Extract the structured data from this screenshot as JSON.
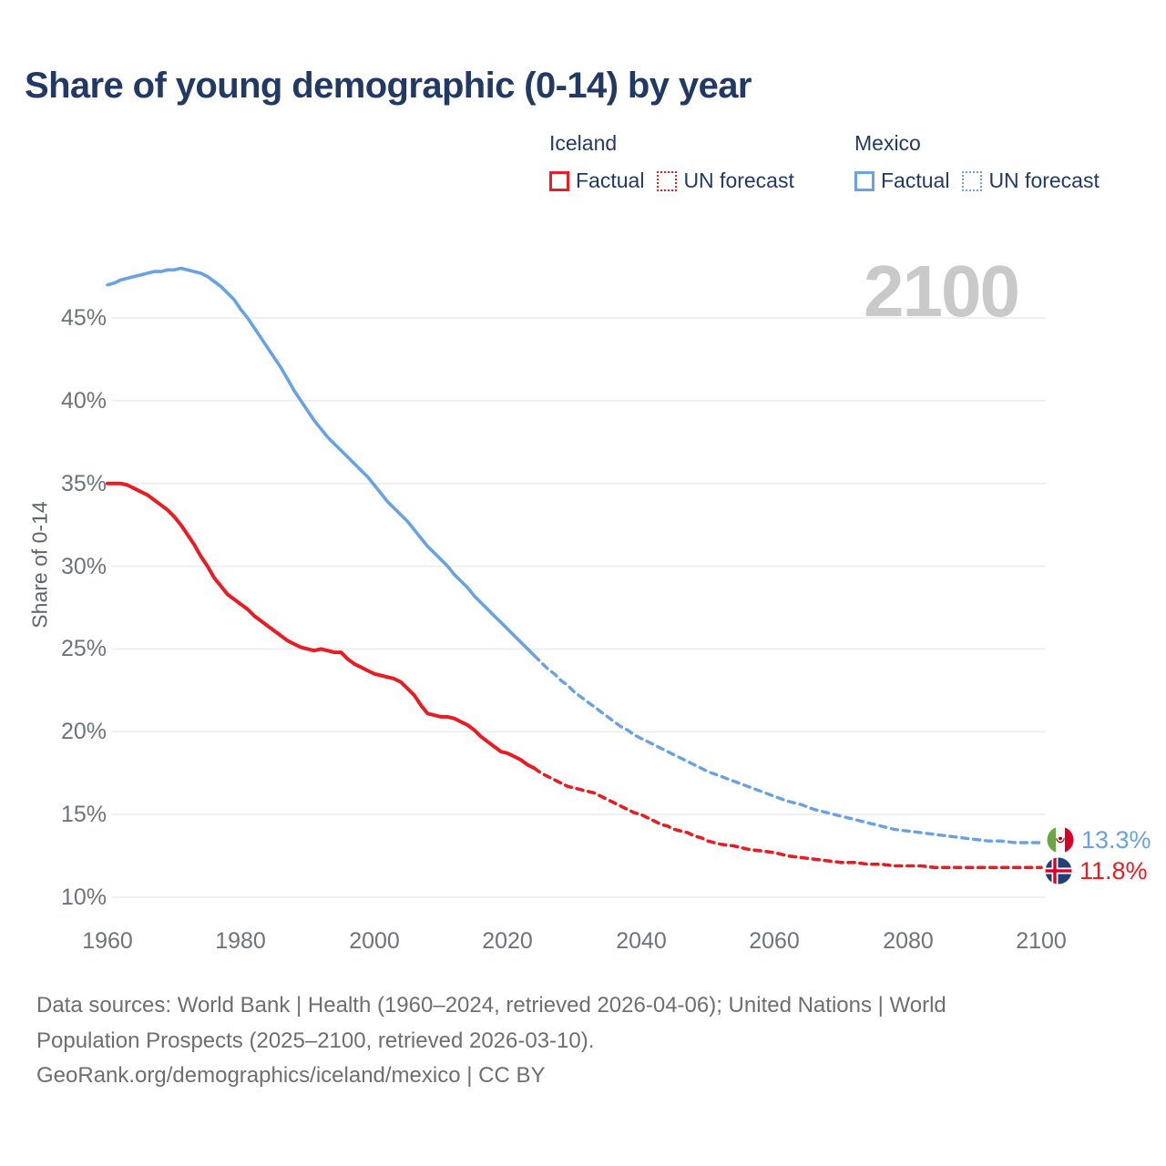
{
  "title": "Share of young demographic (0-14) by year",
  "watermark": "2100",
  "legend": {
    "iceland": {
      "label": "Iceland",
      "factual_label": "Factual",
      "forecast_label": "UN forecast"
    },
    "mexico": {
      "label": "Mexico",
      "factual_label": "Factual",
      "forecast_label": "UN forecast"
    }
  },
  "end_labels": {
    "mexico": {
      "value": "13.3%",
      "flag": "mexico-flag"
    },
    "iceland": {
      "value": "11.8%",
      "flag": "iceland-flag"
    }
  },
  "footer": {
    "lines": [
      "Data sources: World Bank | Health (1960–2024, retrieved 2026-04-06); United Nations | World",
      "Population Prospects (2025–2100, retrieved 2026-03-10).",
      "GeoRank.org/demographics/iceland/mexico | CC BY"
    ]
  },
  "colors": {
    "iceland": "#e81d23",
    "mexico": "#68a2e2",
    "title": "#223a63",
    "axis_text": "#6d737d",
    "grid": "#ebebed",
    "watermark": "#c9c9c9",
    "footer_text": "#6e6e6e"
  },
  "chart_data": {
    "type": "line",
    "title": "Share of young demographic (0-14) by year",
    "xlabel": "",
    "ylabel": "Share of 0-14",
    "xlim": [
      1960,
      2100
    ],
    "ylim": [
      10,
      48
    ],
    "grid": "horizontal",
    "legend_position": "top-right",
    "x_ticks": [
      1960,
      1980,
      2000,
      2020,
      2040,
      2060,
      2080,
      2100
    ],
    "x_tick_labels": [
      "1960",
      "1980",
      "2000",
      "2020",
      "2040",
      "2060",
      "2080",
      "2100"
    ],
    "y_ticks": [
      10,
      15,
      20,
      25,
      30,
      35,
      40,
      45
    ],
    "y_tick_labels": [
      "10%",
      "15%",
      "20%",
      "25%",
      "30%",
      "35%",
      "40%",
      "45%"
    ],
    "series": [
      {
        "id": "mexico-factual",
        "name": "Mexico Factual",
        "country": "Mexico",
        "kind": "factual",
        "color": "mexico",
        "dash": null,
        "width": 3.6,
        "points": [
          [
            1960,
            47.0
          ],
          [
            1961,
            47.1
          ],
          [
            1962,
            47.3
          ],
          [
            1963,
            47.4
          ],
          [
            1964,
            47.5
          ],
          [
            1965,
            47.6
          ],
          [
            1966,
            47.7
          ],
          [
            1967,
            47.8
          ],
          [
            1968,
            47.8
          ],
          [
            1969,
            47.9
          ],
          [
            1970,
            47.9
          ],
          [
            1971,
            48.0
          ],
          [
            1972,
            47.9
          ],
          [
            1973,
            47.8
          ],
          [
            1974,
            47.7
          ],
          [
            1975,
            47.5
          ],
          [
            1976,
            47.2
          ],
          [
            1977,
            46.9
          ],
          [
            1978,
            46.5
          ],
          [
            1979,
            46.1
          ],
          [
            1980,
            45.5
          ],
          [
            1981,
            45.0
          ],
          [
            1982,
            44.4
          ],
          [
            1983,
            43.8
          ],
          [
            1984,
            43.2
          ],
          [
            1985,
            42.6
          ],
          [
            1986,
            42.0
          ],
          [
            1987,
            41.3
          ],
          [
            1988,
            40.6
          ],
          [
            1989,
            40.0
          ],
          [
            1990,
            39.4
          ],
          [
            1991,
            38.8
          ],
          [
            1992,
            38.3
          ],
          [
            1993,
            37.8
          ],
          [
            1994,
            37.4
          ],
          [
            1995,
            37.0
          ],
          [
            1996,
            36.6
          ],
          [
            1997,
            36.2
          ],
          [
            1998,
            35.8
          ],
          [
            1999,
            35.4
          ],
          [
            2000,
            34.9
          ],
          [
            2001,
            34.4
          ],
          [
            2002,
            33.9
          ],
          [
            2003,
            33.5
          ],
          [
            2004,
            33.1
          ],
          [
            2005,
            32.7
          ],
          [
            2006,
            32.2
          ],
          [
            2007,
            31.7
          ],
          [
            2008,
            31.2
          ],
          [
            2009,
            30.8
          ],
          [
            2010,
            30.4
          ],
          [
            2011,
            30.0
          ],
          [
            2012,
            29.5
          ],
          [
            2013,
            29.1
          ],
          [
            2014,
            28.7
          ],
          [
            2015,
            28.2
          ],
          [
            2016,
            27.8
          ],
          [
            2017,
            27.4
          ],
          [
            2018,
            27.0
          ],
          [
            2019,
            26.6
          ],
          [
            2020,
            26.2
          ],
          [
            2021,
            25.8
          ],
          [
            2022,
            25.4
          ],
          [
            2023,
            25.0
          ],
          [
            2024,
            24.6
          ]
        ]
      },
      {
        "id": "mexico-forecast",
        "name": "Mexico UN forecast",
        "country": "Mexico",
        "kind": "forecast",
        "color": "mexico",
        "dash": "7 6",
        "width": 3.4,
        "points": [
          [
            2024,
            24.6
          ],
          [
            2025,
            24.2
          ],
          [
            2026,
            23.8
          ],
          [
            2027,
            23.5
          ],
          [
            2028,
            23.1
          ],
          [
            2029,
            22.8
          ],
          [
            2030,
            22.4
          ],
          [
            2031,
            22.1
          ],
          [
            2032,
            21.8
          ],
          [
            2033,
            21.5
          ],
          [
            2034,
            21.2
          ],
          [
            2035,
            20.9
          ],
          [
            2036,
            20.6
          ],
          [
            2037,
            20.3
          ],
          [
            2038,
            20.1
          ],
          [
            2039,
            19.8
          ],
          [
            2040,
            19.6
          ],
          [
            2042,
            19.2
          ],
          [
            2044,
            18.8
          ],
          [
            2046,
            18.4
          ],
          [
            2048,
            18.0
          ],
          [
            2050,
            17.6
          ],
          [
            2052,
            17.3
          ],
          [
            2054,
            17.0
          ],
          [
            2056,
            16.7
          ],
          [
            2058,
            16.4
          ],
          [
            2060,
            16.1
          ],
          [
            2062,
            15.8
          ],
          [
            2064,
            15.6
          ],
          [
            2066,
            15.3
          ],
          [
            2068,
            15.1
          ],
          [
            2070,
            14.9
          ],
          [
            2072,
            14.7
          ],
          [
            2074,
            14.5
          ],
          [
            2076,
            14.3
          ],
          [
            2078,
            14.1
          ],
          [
            2080,
            14.0
          ],
          [
            2082,
            13.9
          ],
          [
            2084,
            13.8
          ],
          [
            2086,
            13.7
          ],
          [
            2088,
            13.6
          ],
          [
            2090,
            13.5
          ],
          [
            2092,
            13.4
          ],
          [
            2094,
            13.4
          ],
          [
            2096,
            13.3
          ],
          [
            2098,
            13.3
          ],
          [
            2100,
            13.3
          ]
        ]
      },
      {
        "id": "iceland-factual",
        "name": "Iceland Factual",
        "country": "Iceland",
        "kind": "factual",
        "color": "iceland",
        "dash": null,
        "width": 4,
        "points": [
          [
            1960,
            35.0
          ],
          [
            1961,
            35.0
          ],
          [
            1962,
            35.0
          ],
          [
            1963,
            34.9
          ],
          [
            1964,
            34.7
          ],
          [
            1965,
            34.5
          ],
          [
            1966,
            34.3
          ],
          [
            1967,
            34.0
          ],
          [
            1968,
            33.7
          ],
          [
            1969,
            33.4
          ],
          [
            1970,
            33.0
          ],
          [
            1971,
            32.5
          ],
          [
            1972,
            31.9
          ],
          [
            1973,
            31.3
          ],
          [
            1974,
            30.6
          ],
          [
            1975,
            30.0
          ],
          [
            1976,
            29.3
          ],
          [
            1977,
            28.8
          ],
          [
            1978,
            28.3
          ],
          [
            1979,
            28.0
          ],
          [
            1980,
            27.7
          ],
          [
            1981,
            27.4
          ],
          [
            1982,
            27.0
          ],
          [
            1983,
            26.7
          ],
          [
            1984,
            26.4
          ],
          [
            1985,
            26.1
          ],
          [
            1986,
            25.8
          ],
          [
            1987,
            25.5
          ],
          [
            1988,
            25.3
          ],
          [
            1989,
            25.1
          ],
          [
            1990,
            25.0
          ],
          [
            1991,
            24.9
          ],
          [
            1992,
            25.0
          ],
          [
            1993,
            24.9
          ],
          [
            1994,
            24.8
          ],
          [
            1995,
            24.8
          ],
          [
            1996,
            24.4
          ],
          [
            1997,
            24.1
          ],
          [
            1998,
            23.9
          ],
          [
            1999,
            23.7
          ],
          [
            2000,
            23.5
          ],
          [
            2001,
            23.4
          ],
          [
            2002,
            23.3
          ],
          [
            2003,
            23.2
          ],
          [
            2004,
            23.0
          ],
          [
            2005,
            22.6
          ],
          [
            2006,
            22.2
          ],
          [
            2007,
            21.6
          ],
          [
            2008,
            21.1
          ],
          [
            2009,
            21.0
          ],
          [
            2010,
            20.9
          ],
          [
            2011,
            20.9
          ],
          [
            2012,
            20.8
          ],
          [
            2013,
            20.6
          ],
          [
            2014,
            20.4
          ],
          [
            2015,
            20.1
          ],
          [
            2016,
            19.7
          ],
          [
            2017,
            19.4
          ],
          [
            2018,
            19.1
          ],
          [
            2019,
            18.8
          ],
          [
            2020,
            18.7
          ],
          [
            2021,
            18.5
          ],
          [
            2022,
            18.3
          ],
          [
            2023,
            18.0
          ],
          [
            2024,
            17.8
          ]
        ]
      },
      {
        "id": "iceland-forecast",
        "name": "Iceland UN forecast",
        "country": "Iceland",
        "kind": "forecast",
        "color": "iceland",
        "dash": "7 6",
        "width": 3.6,
        "points": [
          [
            2024,
            17.8
          ],
          [
            2025,
            17.5
          ],
          [
            2026,
            17.3
          ],
          [
            2027,
            17.1
          ],
          [
            2028,
            16.9
          ],
          [
            2029,
            16.7
          ],
          [
            2030,
            16.6
          ],
          [
            2031,
            16.5
          ],
          [
            2032,
            16.4
          ],
          [
            2033,
            16.3
          ],
          [
            2034,
            16.1
          ],
          [
            2035,
            15.9
          ],
          [
            2036,
            15.7
          ],
          [
            2037,
            15.5
          ],
          [
            2038,
            15.3
          ],
          [
            2039,
            15.1
          ],
          [
            2040,
            15.0
          ],
          [
            2041,
            14.8
          ],
          [
            2042,
            14.6
          ],
          [
            2043,
            14.4
          ],
          [
            2044,
            14.3
          ],
          [
            2045,
            14.1
          ],
          [
            2046,
            14.0
          ],
          [
            2047,
            13.9
          ],
          [
            2048,
            13.7
          ],
          [
            2049,
            13.6
          ],
          [
            2050,
            13.4
          ],
          [
            2052,
            13.2
          ],
          [
            2054,
            13.1
          ],
          [
            2056,
            12.9
          ],
          [
            2058,
            12.8
          ],
          [
            2060,
            12.7
          ],
          [
            2062,
            12.5
          ],
          [
            2064,
            12.4
          ],
          [
            2066,
            12.3
          ],
          [
            2068,
            12.2
          ],
          [
            2070,
            12.1
          ],
          [
            2072,
            12.1
          ],
          [
            2074,
            12.0
          ],
          [
            2076,
            12.0
          ],
          [
            2078,
            11.9
          ],
          [
            2080,
            11.9
          ],
          [
            2082,
            11.9
          ],
          [
            2084,
            11.8
          ],
          [
            2086,
            11.8
          ],
          [
            2088,
            11.8
          ],
          [
            2090,
            11.8
          ],
          [
            2092,
            11.8
          ],
          [
            2094,
            11.8
          ],
          [
            2096,
            11.8
          ],
          [
            2098,
            11.8
          ],
          [
            2100,
            11.8
          ]
        ]
      }
    ],
    "end_labels": [
      {
        "series": "Mexico",
        "text": "13.3%"
      },
      {
        "series": "Iceland",
        "text": "11.8%"
      }
    ]
  }
}
